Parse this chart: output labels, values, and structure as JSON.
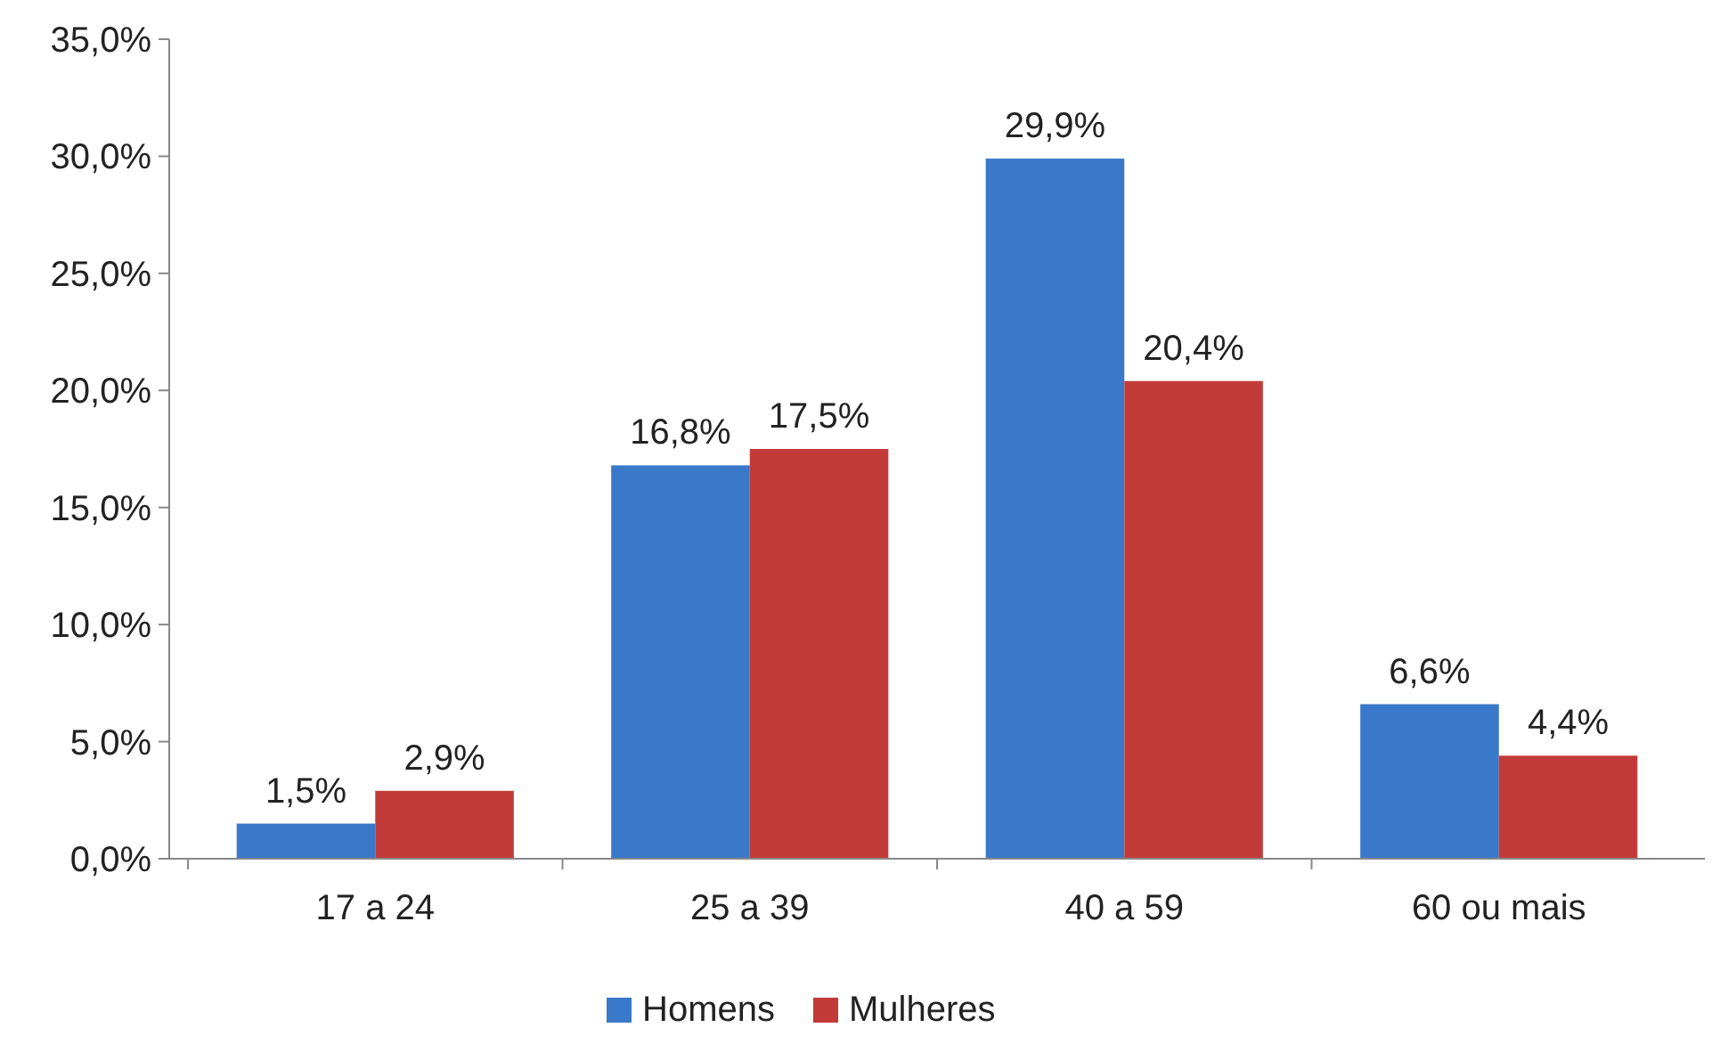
{
  "chart_data": {
    "type": "bar",
    "categories": [
      "17 a 24",
      "25 a 39",
      "40 a 59",
      "60 ou mais"
    ],
    "series": [
      {
        "name": "Homens",
        "color": "#3a78c9",
        "values": [
          1.5,
          16.8,
          29.9,
          6.6
        ],
        "value_labels": [
          "1,5%",
          "16,8%",
          "29,9%",
          "6,6%"
        ]
      },
      {
        "name": "Mulheres",
        "color": "#c23b39",
        "values": [
          2.9,
          17.5,
          20.4,
          4.4
        ],
        "value_labels": [
          "2,9%",
          "17,5%",
          "20,4%",
          "4,4%"
        ]
      }
    ],
    "ylim": [
      0,
      35
    ],
    "yticks": [
      {
        "value": 0,
        "label": "0,0%"
      },
      {
        "value": 5,
        "label": "5,0%"
      },
      {
        "value": 10,
        "label": "10,0%"
      },
      {
        "value": 15,
        "label": "15,0%"
      },
      {
        "value": 20,
        "label": "20,0%"
      },
      {
        "value": 25,
        "label": "25,0%"
      },
      {
        "value": 30,
        "label": "30,0%"
      },
      {
        "value": 35,
        "label": "35,0%"
      }
    ],
    "grid": false,
    "legend": "bottom"
  }
}
